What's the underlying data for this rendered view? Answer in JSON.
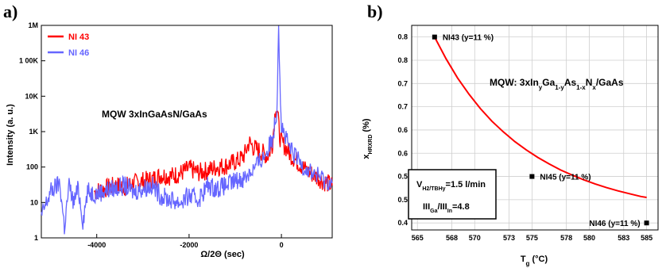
{
  "panels": {
    "a": {
      "label": "a)"
    },
    "b": {
      "label": "b)"
    }
  },
  "chart_data": [
    {
      "type": "line",
      "panel": "a",
      "title": "",
      "annotation": "MQW 3xInGaAsN/GaAs",
      "xlabel": "Ω/2Θ (sec)",
      "ylabel": "Intensity (a. u.)",
      "xlim": [
        -5200,
        1100
      ],
      "ylim": [
        1,
        1000000
      ],
      "yscale": "log",
      "xticks": [
        -4000,
        -2000,
        0
      ],
      "yticks": [
        1,
        10,
        100,
        1000,
        10000,
        100000,
        1000000
      ],
      "ytick_labels": [
        "1",
        "10",
        "100",
        "1K",
        "10K",
        "1 00K",
        "1M"
      ],
      "grid": false,
      "legend": "top-left",
      "series": [
        {
          "name": "NI 43",
          "color": "#ff0000",
          "x": [
            -4050,
            -3800,
            -3600,
            -3400,
            -3200,
            -3000,
            -2800,
            -2600,
            -2400,
            -2200,
            -2000,
            -1800,
            -1600,
            -1400,
            -1200,
            -1000,
            -900,
            -800,
            -700,
            -600,
            -500,
            -400,
            -300,
            -200,
            -120,
            -80,
            -40,
            0,
            100,
            200,
            300,
            400,
            500,
            600,
            700,
            800,
            900,
            1000,
            1100
          ],
          "values": [
            20,
            25,
            30,
            28,
            35,
            40,
            45,
            60,
            55,
            65,
            90,
            70,
            80,
            100,
            110,
            140,
            160,
            220,
            500,
            350,
            300,
            250,
            200,
            400,
            6000,
            3000,
            800,
            500,
            350,
            220,
            160,
            120,
            90,
            70,
            60,
            50,
            40,
            35,
            30
          ]
        },
        {
          "name": "NI 46",
          "color": "#6666ff",
          "x": [
            -5200,
            -5000,
            -4800,
            -4700,
            -4600,
            -4500,
            -4400,
            -4300,
            -4200,
            -4000,
            -3800,
            -3600,
            -3400,
            -3200,
            -3000,
            -2800,
            -2600,
            -2400,
            -2200,
            -2000,
            -1800,
            -1600,
            -1400,
            -1200,
            -1000,
            -800,
            -700,
            -600,
            -500,
            -400,
            -300,
            -200,
            -100,
            -60,
            -20,
            0,
            100,
            200,
            300,
            400,
            500,
            600,
            700,
            800,
            900,
            1000,
            1100
          ],
          "values": [
            4,
            20,
            35,
            2,
            30,
            10,
            25,
            3,
            20,
            18,
            22,
            25,
            30,
            20,
            25,
            30,
            15,
            12,
            10,
            15,
            12,
            30,
            25,
            30,
            40,
            50,
            70,
            90,
            130,
            180,
            300,
            600,
            4000,
            1100000,
            8000,
            1500,
            600,
            300,
            200,
            140,
            100,
            80,
            65,
            55,
            45,
            40,
            35
          ]
        }
      ]
    },
    {
      "type": "scatter",
      "panel": "b",
      "title": "",
      "annotation_main": "MQW: 3xIn",
      "annotation_sub_y": "y",
      "annotation_ga": "Ga",
      "annotation_sub_1y": "1-y",
      "annotation_as": "As",
      "annotation_sub_1x": "1-x",
      "annotation_n": "N",
      "annotation_sub_x": "x",
      "annotation_end": "/GaAs",
      "xlabel_main": "T",
      "xlabel_sub": "g",
      "xlabel_unit": " (°C)",
      "ylabel_main": "x",
      "ylabel_sub": "HRXRD",
      "ylabel_unit": " (%)",
      "xlim": [
        564.5,
        586.0
      ],
      "ylim": [
        0.385,
        0.825
      ],
      "xticks": [
        565,
        568,
        570,
        573,
        575,
        578,
        580,
        583,
        585
      ],
      "yticks": [
        0.4,
        0.45,
        0.5,
        0.55,
        0.6,
        0.65,
        0.7,
        0.75,
        0.8
      ],
      "ytick_labels": [
        "0.4",
        "0.5",
        "0.5",
        "0.6",
        "0.6",
        "0.7",
        "0.7",
        "0.8",
        "0.8"
      ],
      "grid": true,
      "points": [
        {
          "x": 566.5,
          "y": 0.8,
          "label": "NI43 (y=11 %)"
        },
        {
          "x": 575.0,
          "y": 0.5,
          "label": "NI45 (y=11 %)"
        },
        {
          "x": 585.0,
          "y": 0.4,
          "label": "NI46 (y=11 %)"
        }
      ],
      "fit_curve": {
        "color": "#ff0000",
        "x": [
          566.5,
          567.5,
          568.5,
          569.5,
          570.5,
          571.5,
          572.5,
          573.5,
          574.5,
          575.5,
          576.5,
          577.5,
          578.5,
          579.5,
          580.5,
          581.5,
          582.5,
          583.5,
          584.5,
          585.0
        ],
        "values": [
          0.8,
          0.753,
          0.712,
          0.677,
          0.646,
          0.619,
          0.596,
          0.575,
          0.557,
          0.541,
          0.527,
          0.514,
          0.503,
          0.493,
          0.484,
          0.476,
          0.469,
          0.463,
          0.457,
          0.455
        ]
      },
      "box_line1_main": "V",
      "box_line1_sub": "H2/TBHy",
      "box_line1_val": "=1.5 l/min",
      "box_line2_a": "III",
      "box_line2_sub_a": "Ga",
      "box_line2_b": "/III",
      "box_line2_sub_b": "In",
      "box_line2_val": "=4.8"
    }
  ]
}
